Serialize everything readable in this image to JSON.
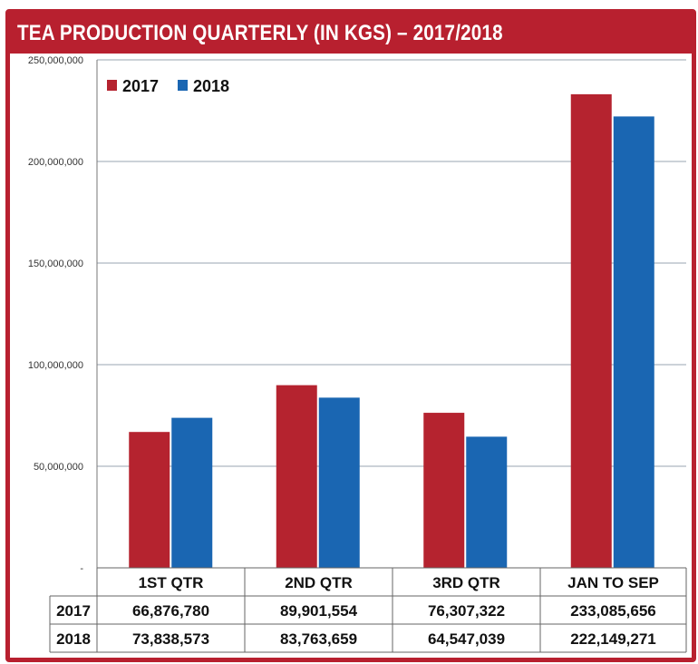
{
  "title": "TEA PRODUCTION QUARTERLY (IN KGS) – 2017/2018",
  "chart_data": {
    "type": "bar",
    "title": "TEA PRODUCTION QUARTERLY (IN KGS) – 2017/2018",
    "categories": [
      "1ST QTR",
      "2ND QTR",
      "3RD QTR",
      "JAN TO SEP"
    ],
    "series": [
      {
        "name": "2017",
        "color": "#b5232f",
        "values": [
          66876780,
          89901554,
          76307322,
          233085656
        ],
        "labels": [
          "66,876,780",
          "89,901,554",
          "76,307,322",
          "233,085,656"
        ]
      },
      {
        "name": "2018",
        "color": "#1a66b2",
        "values": [
          73838573,
          83763659,
          64547039,
          222149271
        ],
        "labels": [
          "73,838,573",
          "83,763,659",
          "64,547,039",
          "222,149,271"
        ]
      }
    ],
    "ylim": [
      0,
      250000000
    ],
    "yticks": [
      0,
      50000000,
      100000000,
      150000000,
      200000000,
      250000000
    ],
    "ytick_labels": [
      "-",
      "50,000,000",
      "100,000,000",
      "150,000,000",
      "200,000,000",
      "250,000,000"
    ],
    "legend": "top-left",
    "grid": true,
    "data_table": true
  }
}
